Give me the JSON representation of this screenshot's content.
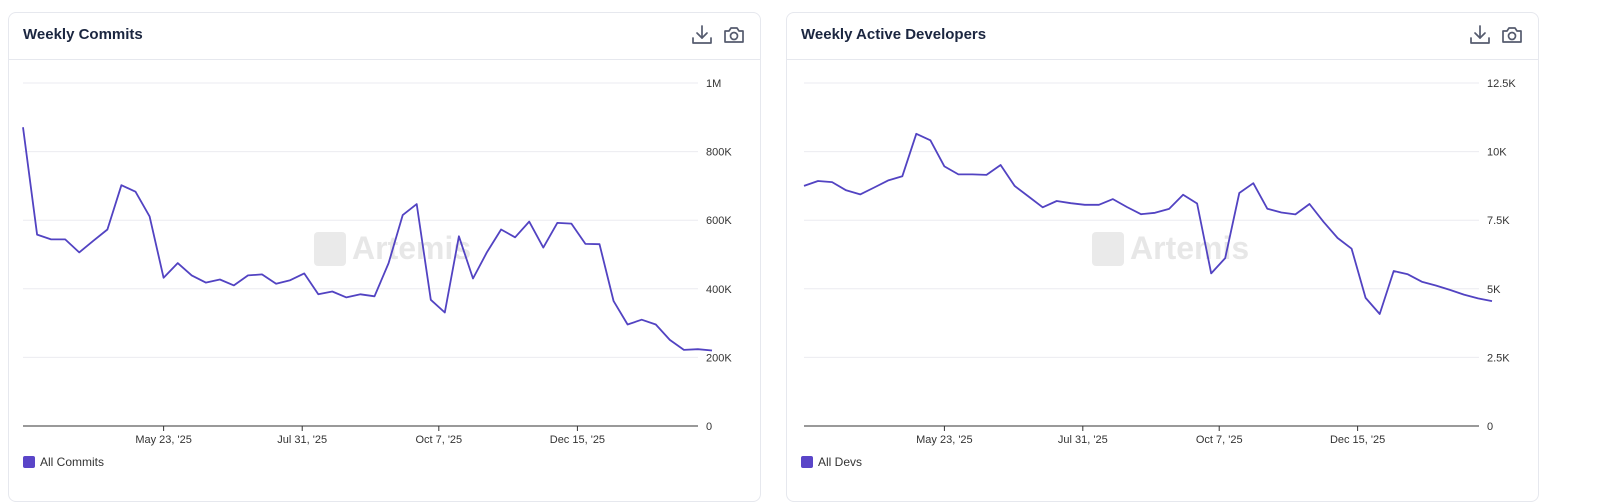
{
  "brand": {
    "watermark": "Artemis"
  },
  "colors": {
    "line": "#5243c2",
    "swatch": "#5a45c8",
    "grid": "#ebebf0",
    "axis": "#333333"
  },
  "icons": {
    "download": "download-icon",
    "camera": "camera-icon"
  },
  "charts": [
    {
      "title": "Weekly Commits",
      "legend": "All Commits",
      "chart_data": {
        "type": "line",
        "ylim": [
          0,
          1000000
        ],
        "yticks": [
          0,
          200000,
          400000,
          600000,
          800000,
          1000000
        ],
        "ytick_labels": [
          "0",
          "200K",
          "400K",
          "600K",
          "800K",
          "1M"
        ],
        "xticks": [
          "2025-05-23",
          "2025-07-31",
          "2025-10-07",
          "2025-12-15"
        ],
        "xtick_labels": [
          "May 23, '25",
          "Jul 31, '25",
          "Oct 7, '25",
          "Dec 15, '25"
        ],
        "grid": true,
        "legend_position": "bottom-left",
        "x": [
          "2025-03-14",
          "2025-03-21",
          "2025-03-28",
          "2025-04-04",
          "2025-04-11",
          "2025-04-18",
          "2025-04-25",
          "2025-05-02",
          "2025-05-09",
          "2025-05-16",
          "2025-05-23",
          "2025-05-30",
          "2025-06-06",
          "2025-06-13",
          "2025-06-20",
          "2025-06-27",
          "2025-07-04",
          "2025-07-11",
          "2025-07-18",
          "2025-07-25",
          "2025-08-01",
          "2025-08-08",
          "2025-08-15",
          "2025-08-22",
          "2025-08-29",
          "2025-09-05",
          "2025-09-12",
          "2025-09-19",
          "2025-09-26",
          "2025-10-03",
          "2025-10-10",
          "2025-10-17",
          "2025-10-24",
          "2025-10-31",
          "2025-11-07",
          "2025-11-14",
          "2025-11-21",
          "2025-11-28",
          "2025-12-05",
          "2025-12-12",
          "2025-12-19",
          "2025-12-26",
          "2026-01-02",
          "2026-01-09",
          "2026-01-16",
          "2026-01-23",
          "2026-01-30",
          "2026-02-06",
          "2026-02-13",
          "2026-02-20"
        ],
        "series": [
          {
            "name": "All Commits",
            "values": [
              871000,
              558000,
              544000,
              544000,
              506000,
              540000,
              573000,
              702000,
              683000,
              611000,
              432000,
              475000,
              439000,
              418000,
              427000,
              410000,
              439000,
              442000,
              415000,
              425000,
              445000,
              384000,
              392000,
              375000,
              384000,
              378000,
              475000,
              615000,
              647000,
              368000,
              331000,
              553000,
              430000,
              507000,
              573000,
              550000,
              596000,
              520000,
              592000,
              590000,
              531000,
              530000,
              364000,
              296000,
              310000,
              296000,
              251000,
              222000,
              224000,
              220000
            ]
          }
        ]
      }
    },
    {
      "title": "Weekly Active Developers",
      "legend": "All Devs",
      "chart_data": {
        "type": "line",
        "ylim": [
          0,
          12500
        ],
        "yticks": [
          0,
          2500,
          5000,
          7500,
          10000,
          12500
        ],
        "ytick_labels": [
          "0",
          "2.5K",
          "5K",
          "7.5K",
          "10K",
          "12.5K"
        ],
        "xticks": [
          "2025-05-23",
          "2025-07-31",
          "2025-10-07",
          "2025-12-15"
        ],
        "xtick_labels": [
          "May 23, '25",
          "Jul 31, '25",
          "Oct 7, '25",
          "Dec 15, '25"
        ],
        "grid": true,
        "legend_position": "bottom-left",
        "x": [
          "2025-03-14",
          "2025-03-21",
          "2025-03-28",
          "2025-04-04",
          "2025-04-11",
          "2025-04-18",
          "2025-04-25",
          "2025-05-02",
          "2025-05-09",
          "2025-05-16",
          "2025-05-23",
          "2025-05-30",
          "2025-06-06",
          "2025-06-13",
          "2025-06-20",
          "2025-06-27",
          "2025-07-04",
          "2025-07-11",
          "2025-07-18",
          "2025-07-25",
          "2025-08-01",
          "2025-08-08",
          "2025-08-15",
          "2025-08-22",
          "2025-08-29",
          "2025-09-05",
          "2025-09-12",
          "2025-09-19",
          "2025-09-26",
          "2025-10-03",
          "2025-10-10",
          "2025-10-17",
          "2025-10-24",
          "2025-10-31",
          "2025-11-07",
          "2025-11-14",
          "2025-11-21",
          "2025-11-28",
          "2025-12-05",
          "2025-12-12",
          "2025-12-19",
          "2025-12-26",
          "2026-01-02",
          "2026-01-09",
          "2026-01-16",
          "2026-01-23",
          "2026-01-30",
          "2026-02-06",
          "2026-02-13",
          "2026-02-20"
        ],
        "series": [
          {
            "name": "All Devs",
            "values": [
              8750,
              8930,
              8890,
              8590,
              8440,
              8690,
              8950,
              9100,
              10650,
              10410,
              9460,
              9170,
              9170,
              9150,
              9510,
              8750,
              8360,
              7970,
              8200,
              8120,
              8060,
              8060,
              8270,
              7980,
              7720,
              7770,
              7910,
              8430,
              8110,
              5560,
              6120,
              8490,
              8850,
              7920,
              7780,
              7710,
              8090,
              7440,
              6850,
              6460,
              4670,
              4080,
              5650,
              5530,
              5260,
              5120,
              4960,
              4790,
              4650,
              4550
            ]
          }
        ]
      }
    }
  ]
}
